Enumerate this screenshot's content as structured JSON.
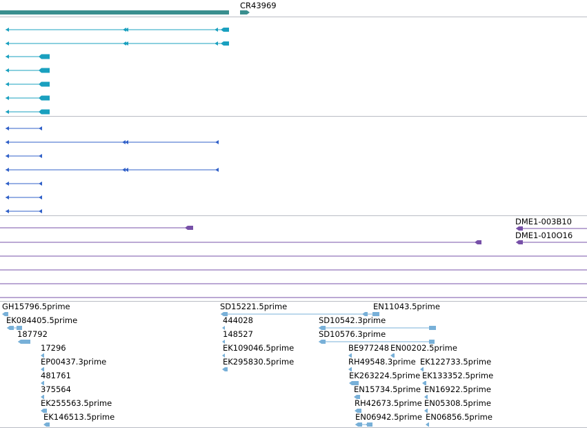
{
  "colors": {
    "gene": "#3a8f8f",
    "transcript": "#1aa0bf",
    "protein": "#3060c8",
    "clone": "#7750a8",
    "est": "#78b0d8",
    "divider": "#b9bcc4"
  },
  "tracks": {
    "gene_label": "CR43969",
    "clone_labels": [
      "DME1-003B10",
      "DME1-010O16"
    ],
    "est_labels": [
      "GH15796.5prime",
      "EK084405.5prime",
      "187792",
      "17296",
      "EP00437.3prime",
      "481761",
      "375564",
      "EK255563.5prime",
      "EK146513.5prime",
      "SD15221.5prime",
      "444028",
      "148527",
      "EK109046.5prime",
      "EK295830.5prime",
      "EN11043.5prime",
      "SD10542.3prime",
      "SD10576.3prime",
      "BE977248",
      "EN00202.5prime",
      "RH49548.3prime",
      "EK122733.5prime",
      "EK263224.5prime",
      "EK133352.5prime",
      "EN15734.5prime",
      "EN16922.5prime",
      "RH42673.5prime",
      "EN05308.5prime",
      "EN06942.5prime",
      "EN06856.5prime"
    ]
  }
}
